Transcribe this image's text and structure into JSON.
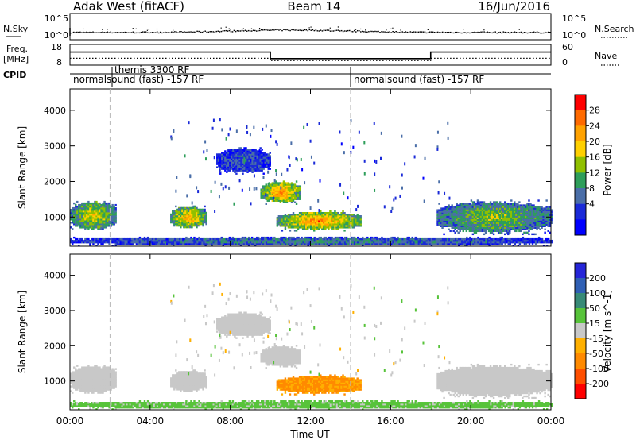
{
  "header": {
    "left_title": "Adak West (fitACF)",
    "center_title": "Beam 14",
    "right_title": "16/Jun/2016"
  },
  "nsky_panel": {
    "left_label": "N.Sky",
    "right_label": "N.Search",
    "ticks": [
      "10^5",
      "10^0"
    ]
  },
  "freq_panel": {
    "left_label_1": "Freq.",
    "left_label_2": "[MHz]",
    "left_ticks": [
      "18",
      "8"
    ],
    "right_label": "Nave",
    "right_ticks": [
      "60",
      "0"
    ]
  },
  "cpid_panel": {
    "label": "CPID",
    "modes": [
      {
        "text": "normalsound (fast) -157 RF",
        "start_hour": 0
      },
      {
        "text": "themis 3300 RF",
        "start_hour": 2
      },
      {
        "text": "normalsound (fast) -157 RF",
        "start_hour": 14
      }
    ]
  },
  "range_axis": {
    "label": "Slant Range [km]",
    "ticks": [
      "4000",
      "3000",
      "2000",
      "1000"
    ]
  },
  "time_axis": {
    "label": "Time UT",
    "ticks": [
      "00:00",
      "04:00",
      "08:00",
      "12:00",
      "16:00",
      "20:00",
      "00:00"
    ]
  },
  "power_colorbar": {
    "label": "Power [dB]",
    "ticks": [
      "28",
      "24",
      "20",
      "16",
      "12",
      "8",
      "4"
    ],
    "colors": [
      "#ff0000",
      "#ff6a00",
      "#ffa200",
      "#ffd000",
      "#90c000",
      "#2e9e5a",
      "#4a6ea8",
      "#1a2ad8",
      "#0000ff"
    ]
  },
  "velocity_colorbar": {
    "label": "Velocity [m s^-1]",
    "ticks": [
      "200",
      "100",
      "50",
      "15",
      "-15",
      "-50",
      "-100",
      "-200"
    ],
    "colors": [
      "#2525d8",
      "#2f5fb4",
      "#378a77",
      "#57c33a",
      "#c8c8c8",
      "#ffb000",
      "#ff8a00",
      "#ff4f00",
      "#ff0000"
    ]
  },
  "chart_data": {
    "type": "heatmap",
    "x_range_hours": [
      0,
      24
    ],
    "y_range_km": [
      180,
      4600
    ],
    "cpid_change_hours": [
      2,
      14
    ],
    "freq_mhz_segments": [
      {
        "start": 0,
        "end": 10,
        "value": 15.6
      },
      {
        "start": 10,
        "end": 18,
        "value": 10.8
      },
      {
        "start": 18,
        "end": 24,
        "value": 15.6
      }
    ],
    "nave_segments": [
      {
        "start": 0,
        "end": 10,
        "value": 18
      },
      {
        "start": 10,
        "end": 18,
        "value": 10
      },
      {
        "start": 18,
        "end": 24,
        "value": 18
      }
    ],
    "echo_regions": [
      {
        "t0": 0.0,
        "t1": 2.3,
        "r0": 600,
        "r1": 1450,
        "power": 14,
        "velocity": 0
      },
      {
        "t0": 5.0,
        "t1": 6.8,
        "r0": 650,
        "r1": 1300,
        "power": 16,
        "velocity": 0
      },
      {
        "t0": 7.3,
        "t1": 10.0,
        "r0": 2200,
        "r1": 2950,
        "power": 6,
        "velocity": 0
      },
      {
        "t0": 9.5,
        "t1": 11.5,
        "r0": 1350,
        "r1": 2000,
        "power": 18,
        "velocity": 0
      },
      {
        "t0": 10.3,
        "t1": 14.5,
        "r0": 600,
        "r1": 1150,
        "power": 18,
        "velocity": -55
      },
      {
        "t0": 18.3,
        "t1": 24.0,
        "r0": 500,
        "r1": 1450,
        "power": 12,
        "velocity": 0
      },
      {
        "t0": 0.0,
        "t1": 24.0,
        "r0": 180,
        "r1": 420,
        "power": 8,
        "velocity": 25
      }
    ]
  }
}
